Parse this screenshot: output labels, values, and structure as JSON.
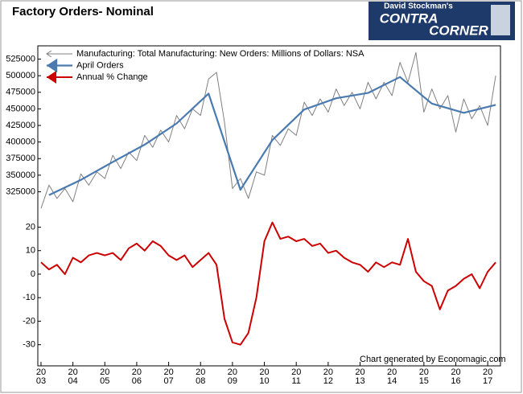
{
  "chart_data": [
    {
      "type": "line",
      "title": "Factory Orders- Nominal",
      "xlim": [
        2002.9,
        2017.4
      ],
      "ylim": [
        305000,
        545000
      ],
      "yticks": [
        325000,
        350000,
        375000,
        400000,
        425000,
        450000,
        475000,
        500000,
        525000
      ],
      "legend": "upper left",
      "series": [
        {
          "name": "Manufacturing: Total Manufacturing: New Orders: Millions of Dollars: NSA",
          "color": "#808080",
          "width": 1,
          "x": [
            2003.0,
            2003.25,
            2003.5,
            2003.75,
            2004.0,
            2004.25,
            2004.5,
            2004.75,
            2005.0,
            2005.25,
            2005.5,
            2005.75,
            2006.0,
            2006.25,
            2006.5,
            2006.75,
            2007.0,
            2007.25,
            2007.5,
            2007.75,
            2008.0,
            2008.25,
            2008.5,
            2008.75,
            2009.0,
            2009.25,
            2009.5,
            2009.75,
            2010.0,
            2010.25,
            2010.5,
            2010.75,
            2011.0,
            2011.25,
            2011.5,
            2011.75,
            2012.0,
            2012.25,
            2012.5,
            2012.75,
            2013.0,
            2013.25,
            2013.5,
            2013.75,
            2014.0,
            2014.25,
            2014.5,
            2014.75,
            2015.0,
            2015.25,
            2015.5,
            2015.75,
            2016.0,
            2016.25,
            2016.5,
            2016.75,
            2017.0,
            2017.25
          ],
          "values": [
            300000,
            335000,
            315000,
            330000,
            310000,
            352000,
            335000,
            355000,
            345000,
            380000,
            360000,
            385000,
            372000,
            410000,
            392000,
            418000,
            400000,
            440000,
            420000,
            450000,
            440000,
            495000,
            505000,
            430000,
            330000,
            345000,
            315000,
            355000,
            350000,
            410000,
            395000,
            420000,
            410000,
            460000,
            440000,
            465000,
            445000,
            480000,
            455000,
            475000,
            450000,
            490000,
            465000,
            490000,
            470000,
            520000,
            490000,
            535000,
            445000,
            480000,
            450000,
            470000,
            415000,
            465000,
            435000,
            455000,
            425000,
            500000
          ]
        },
        {
          "name": "April Orders",
          "color": "#4a7ab0",
          "width": 2.2,
          "x": [
            2003.25,
            2004.25,
            2005.25,
            2006.25,
            2007.25,
            2008.25,
            2009.25,
            2010.25,
            2011.25,
            2012.25,
            2013.25,
            2014.25,
            2015.25,
            2016.25,
            2017.25
          ],
          "values": [
            320000,
            343000,
            370000,
            396000,
            428000,
            473000,
            328000,
            403000,
            449000,
            466000,
            474000,
            498000,
            458000,
            444000,
            456000
          ]
        }
      ]
    },
    {
      "type": "line",
      "xlim": [
        2002.9,
        2017.4
      ],
      "ylim": [
        -39,
        27
      ],
      "yticks": [
        -30,
        -20,
        -10,
        0,
        10,
        20
      ],
      "xticks": [
        2003,
        2004,
        2005,
        2006,
        2007,
        2008,
        2009,
        2010,
        2011,
        2012,
        2013,
        2014,
        2015,
        2016,
        2017
      ],
      "series": [
        {
          "name": "Annual % Change",
          "color": "#cc0000",
          "width": 2,
          "x": [
            2003.0,
            2003.25,
            2003.5,
            2003.75,
            2004.0,
            2004.25,
            2004.5,
            2004.75,
            2005.0,
            2005.25,
            2005.5,
            2005.75,
            2006.0,
            2006.25,
            2006.5,
            2006.75,
            2007.0,
            2007.25,
            2007.5,
            2007.75,
            2008.0,
            2008.25,
            2008.5,
            2008.75,
            2009.0,
            2009.25,
            2009.5,
            2009.75,
            2010.0,
            2010.25,
            2010.5,
            2010.75,
            2011.0,
            2011.25,
            2011.5,
            2011.75,
            2012.0,
            2012.25,
            2012.5,
            2012.75,
            2013.0,
            2013.25,
            2013.5,
            2013.75,
            2014.0,
            2014.25,
            2014.5,
            2014.75,
            2015.0,
            2015.25,
            2015.5,
            2015.75,
            2016.0,
            2016.25,
            2016.5,
            2016.75,
            2017.0,
            2017.25
          ],
          "values": [
            5,
            2,
            4,
            0,
            7,
            5,
            8,
            9,
            8,
            9,
            6,
            11,
            13,
            10,
            14,
            12,
            8,
            6,
            8,
            3,
            6,
            9,
            4,
            -19,
            -29,
            -30,
            -25,
            -10,
            14,
            22,
            15,
            16,
            14,
            15,
            12,
            13,
            9,
            10,
            7,
            5,
            4,
            1,
            5,
            3,
            5,
            4,
            15,
            1,
            -3,
            -5,
            -15,
            -7,
            -5,
            -2,
            0,
            -6,
            1,
            5
          ]
        }
      ],
      "footer": "Chart generated by Economagic.com"
    }
  ],
  "logo": {
    "line1": "David Stockman's",
    "line2": "CONTRA",
    "line3": "CORNER"
  }
}
